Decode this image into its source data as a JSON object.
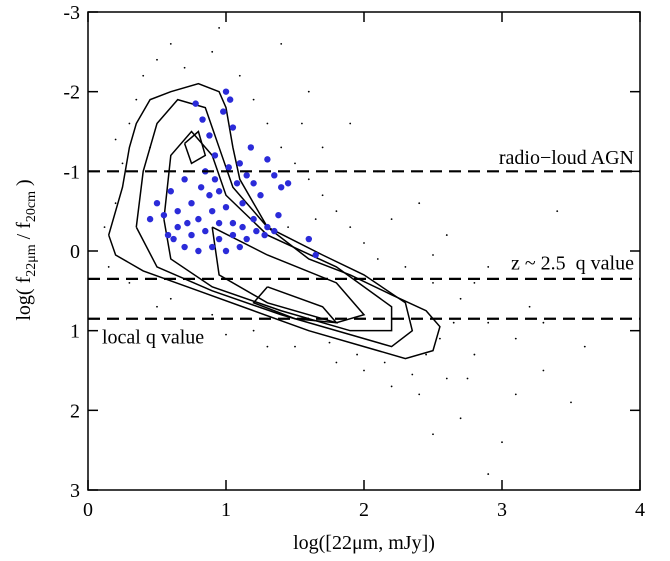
{
  "chart_data": {
    "type": "scatter",
    "xlabel": "log([22μm, mJy])",
    "ylabel_parts": [
      "log( f",
      "22μm",
      " / f",
      "20cm",
      " )"
    ],
    "xlim": [
      0,
      4
    ],
    "xticks": [
      0,
      1,
      2,
      3,
      4
    ],
    "ylim": [
      3,
      -3
    ],
    "yticks": [
      -3,
      -2,
      -1,
      0,
      1,
      2,
      3
    ],
    "hlines": [
      {
        "value": -1,
        "label": "radio−loud AGN"
      },
      {
        "value": 0.35,
        "label": "z ~ 2.5  q value"
      },
      {
        "value": 0.85,
        "label": "local q value"
      }
    ],
    "contour_color": "#000000",
    "contours": [
      {
        "x": [
          0.15,
          0.25,
          0.3,
          0.35,
          0.45,
          0.6,
          0.8,
          0.95,
          1.0,
          1.05,
          1.1,
          1.2,
          1.3,
          1.6,
          1.9,
          2.2,
          2.45,
          2.55,
          2.5,
          2.3,
          2.0,
          1.6,
          1.2,
          0.8,
          0.4,
          0.2,
          0.15
        ],
        "y": [
          -0.2,
          -0.8,
          -1.3,
          -1.6,
          -1.9,
          -2.0,
          -2.1,
          -2.0,
          -1.8,
          -1.3,
          -0.9,
          -0.6,
          -0.3,
          0.1,
          0.3,
          0.55,
          0.75,
          0.95,
          1.25,
          1.35,
          1.2,
          1.0,
          0.75,
          0.5,
          0.25,
          0.05,
          -0.2
        ]
      },
      {
        "x": [
          0.35,
          0.4,
          0.5,
          0.65,
          0.85,
          0.95,
          1.05,
          1.3,
          1.7,
          2.0,
          2.3,
          2.35,
          2.2,
          1.9,
          1.4,
          0.9,
          0.5,
          0.35
        ],
        "y": [
          -0.3,
          -1.0,
          -1.6,
          -1.9,
          -1.8,
          -1.3,
          -0.8,
          -0.3,
          0.05,
          0.3,
          0.65,
          1.0,
          1.2,
          1.05,
          0.8,
          0.5,
          0.2,
          -0.3
        ]
      },
      {
        "x": [
          0.55,
          0.6,
          0.75,
          0.9,
          1.0,
          1.3,
          1.8,
          2.2,
          2.2,
          1.9,
          1.4,
          0.9,
          0.6,
          0.55
        ],
        "y": [
          -0.4,
          -1.2,
          -1.5,
          -1.2,
          -0.7,
          -0.2,
          0.2,
          0.7,
          1.0,
          1.0,
          0.75,
          0.45,
          0.1,
          -0.4
        ]
      },
      {
        "x": [
          0.9,
          1.3,
          1.8,
          2.0,
          1.8,
          1.3,
          0.95,
          0.9
        ],
        "y": [
          -0.3,
          0.05,
          0.4,
          0.8,
          0.9,
          0.65,
          0.3,
          -0.3
        ]
      },
      {
        "x": [
          1.3,
          1.7,
          1.8,
          1.5,
          1.2,
          1.3
        ],
        "y": [
          0.45,
          0.7,
          0.9,
          0.85,
          0.65,
          0.45
        ]
      },
      {
        "x": [
          0.7,
          0.8,
          0.85,
          0.75,
          0.7
        ],
        "y": [
          -1.35,
          -1.5,
          -1.2,
          -1.1,
          -1.35
        ]
      }
    ],
    "points": [
      {
        "color": "#000000",
        "x": [
          0.2,
          0.25,
          0.3,
          0.4,
          0.5,
          0.6,
          0.7,
          0.9,
          1.1,
          1.2,
          1.3,
          1.4,
          1.5,
          1.6,
          1.7,
          1.8,
          1.9,
          2.0,
          2.1,
          2.3,
          2.5,
          2.7,
          2.9,
          3.1,
          3.3,
          3.5,
          2.8,
          2.6,
          2.4,
          2.2,
          2.0,
          1.8,
          1.5,
          1.2,
          0.9,
          0.6,
          0.3,
          0.15,
          2.7,
          3.0,
          3.2,
          2.9,
          2.4,
          2.1,
          1.9,
          1.6,
          1.4,
          0.35,
          0.12,
          0.45,
          1.7,
          2.6,
          3.0,
          3.4,
          3.6,
          2.55,
          2.65,
          2.45,
          2.35,
          2.15,
          1.95,
          1.75,
          2.75,
          3.1,
          2.9,
          2.5,
          1.3,
          1.0,
          0.7,
          0.5,
          1.55,
          1.85,
          2.2,
          2.5,
          1.45,
          1.65,
          2.8,
          3.3,
          0.95,
          0.2
        ],
        "y": [
          -0.6,
          -1.1,
          -1.6,
          -2.2,
          -2.4,
          -2.6,
          -2.3,
          -2.5,
          -2.2,
          -1.9,
          -1.6,
          -1.3,
          -1.1,
          -0.9,
          -0.7,
          -0.5,
          -0.3,
          -0.1,
          0.1,
          0.2,
          0.4,
          0.6,
          0.9,
          1.1,
          1.5,
          1.9,
          1.3,
          1.6,
          1.8,
          1.7,
          1.5,
          1.4,
          1.2,
          1.0,
          0.8,
          0.6,
          0.4,
          0.2,
          2.1,
          2.4,
          0.7,
          0.2,
          -0.6,
          -1.0,
          -1.6,
          -2.0,
          -2.6,
          -1.9,
          -0.3,
          -1.3,
          -1.3,
          -0.2,
          -1.2,
          -0.5,
          1.2,
          1.1,
          0.9,
          1.3,
          1.55,
          1.4,
          1.3,
          1.15,
          1.6,
          1.8,
          2.8,
          2.3,
          1.2,
          1.05,
          0.85,
          0.7,
          -1.6,
          -1.0,
          -0.4,
          0.05,
          -0.3,
          -0.4,
          0.4,
          0.9,
          -2.8,
          -1.4
        ]
      },
      {
        "color": "#2b2bd9",
        "x": [
          0.78,
          0.83,
          1.0,
          1.03,
          0.98,
          0.88,
          1.05,
          0.92,
          0.85,
          1.1,
          1.15,
          1.08,
          0.95,
          0.7,
          0.6,
          0.5,
          0.55,
          0.65,
          0.75,
          0.8,
          0.9,
          1.0,
          1.12,
          1.2,
          1.25,
          1.3,
          1.35,
          1.4,
          1.45,
          1.38,
          1.3,
          1.22,
          1.15,
          1.05,
          0.95,
          0.85,
          0.75,
          0.65,
          0.58,
          0.7,
          0.8,
          0.9,
          1.0,
          1.1,
          0.95,
          1.05,
          0.88,
          1.18,
          1.28,
          1.6,
          1.65,
          1.35,
          0.62,
          0.92,
          1.02,
          0.45,
          1.12,
          0.72,
          0.82,
          1.2
        ],
        "y": [
          -1.85,
          -1.65,
          -2.0,
          -1.9,
          -1.75,
          -1.45,
          -1.55,
          -1.2,
          -1.0,
          -1.1,
          -0.95,
          -0.85,
          -0.75,
          -0.9,
          -0.75,
          -0.6,
          -0.45,
          -0.5,
          -0.6,
          -0.4,
          -0.5,
          -0.55,
          -0.6,
          -0.4,
          -0.7,
          -1.15,
          -0.95,
          -0.8,
          -0.85,
          -0.45,
          -0.3,
          -0.25,
          -0.15,
          -0.2,
          -0.15,
          -0.25,
          -0.2,
          -0.3,
          -0.2,
          -0.05,
          0.0,
          -0.05,
          0.0,
          -0.05,
          -0.35,
          -0.35,
          -0.7,
          -1.3,
          -0.2,
          -0.15,
          0.05,
          -0.25,
          -0.15,
          -0.9,
          -1.05,
          -0.4,
          -0.3,
          -0.35,
          -0.8,
          -0.85
        ]
      }
    ]
  }
}
